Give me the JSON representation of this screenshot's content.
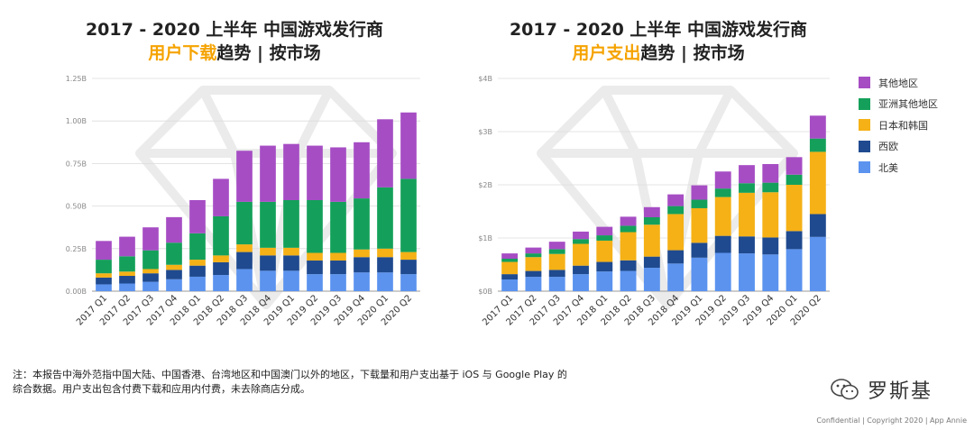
{
  "left_title": {
    "line1": "2017 - 2020 上半年 中国游戏发行商",
    "accent": "用户下载",
    "rest": "趋势 | 按市场"
  },
  "right_title": {
    "line1": "2017 - 2020 上半年 中国游戏发行商",
    "accent": "用户支出",
    "rest": "趋势 | 按市场"
  },
  "legend": [
    {
      "label": "其他地区",
      "color": "#a64dc4"
    },
    {
      "label": "亚洲其他地区",
      "color": "#14a05a"
    },
    {
      "label": "日本和韩国",
      "color": "#f5b116"
    },
    {
      "label": "西欧",
      "color": "#1f4a8f"
    },
    {
      "label": "北美",
      "color": "#5b93ef"
    }
  ],
  "footnote": {
    "line1": "注：本报告中海外范指中国大陆、中国香港、台湾地区和中国澳门以外的地区，下载量和用户支出基于 iOS 与 Google Play 的",
    "line2": "综合数据。用户支出包含付费下载和应用内付费，未去除商店分成。"
  },
  "brand": "罗斯基",
  "confidential": "Confidential  |  Copyright 2020  |  App Annie",
  "chart_data": [
    {
      "type": "bar",
      "stacked": true,
      "title": "2017 - 2020 上半年 中国游戏发行商 用户下载趋势 | 按市场",
      "categories": [
        "2017 Q1",
        "2017 Q2",
        "2017 Q3",
        "2017 Q4",
        "2018 Q1",
        "2018 Q2",
        "2018 Q3",
        "2018 Q4",
        "2019 Q1",
        "2019 Q2",
        "2019 Q3",
        "2019 Q4",
        "2020 Q1",
        "2020 Q2"
      ],
      "yticks": [
        "0.00B",
        "0.25B",
        "0.50B",
        "0.75B",
        "1.00B",
        "1.25B"
      ],
      "ylim": [
        0,
        1.25
      ],
      "grid": true,
      "series": [
        {
          "name": "北美",
          "values": [
            0.04,
            0.045,
            0.055,
            0.07,
            0.085,
            0.095,
            0.13,
            0.12,
            0.12,
            0.1,
            0.1,
            0.11,
            0.11,
            0.1
          ]
        },
        {
          "name": "西欧",
          "values": [
            0.04,
            0.045,
            0.05,
            0.055,
            0.065,
            0.075,
            0.1,
            0.09,
            0.09,
            0.08,
            0.08,
            0.09,
            0.09,
            0.085
          ]
        },
        {
          "name": "日本和韩国",
          "values": [
            0.025,
            0.025,
            0.025,
            0.03,
            0.035,
            0.04,
            0.045,
            0.045,
            0.045,
            0.045,
            0.045,
            0.045,
            0.05,
            0.045
          ]
        },
        {
          "name": "亚洲其他地区",
          "values": [
            0.08,
            0.09,
            0.11,
            0.13,
            0.155,
            0.23,
            0.25,
            0.27,
            0.28,
            0.31,
            0.3,
            0.3,
            0.36,
            0.43
          ]
        },
        {
          "name": "其他地区",
          "values": [
            0.11,
            0.115,
            0.135,
            0.15,
            0.195,
            0.22,
            0.3,
            0.33,
            0.33,
            0.32,
            0.32,
            0.33,
            0.4,
            0.39
          ]
        }
      ]
    },
    {
      "type": "bar",
      "stacked": true,
      "title": "2017 - 2020 上半年 中国游戏发行商 用户支出趋势 | 按市场",
      "categories": [
        "2017 Q1",
        "2017 Q2",
        "2017 Q3",
        "2017 Q4",
        "2018 Q1",
        "2018 Q2",
        "2018 Q3",
        "2018 Q4",
        "2019 Q1",
        "2019 Q2",
        "2019 Q3",
        "2019 Q4",
        "2020 Q1",
        "2020 Q2"
      ],
      "yticks": [
        "$0B",
        "$1B",
        "$2B",
        "$3B",
        "$4B"
      ],
      "ylim": [
        0,
        4
      ],
      "grid": true,
      "series": [
        {
          "name": "北美",
          "values": [
            0.22,
            0.27,
            0.27,
            0.32,
            0.37,
            0.38,
            0.44,
            0.52,
            0.63,
            0.72,
            0.71,
            0.69,
            0.79,
            1.02
          ]
        },
        {
          "name": "西欧",
          "values": [
            0.1,
            0.11,
            0.13,
            0.16,
            0.18,
            0.2,
            0.21,
            0.25,
            0.28,
            0.32,
            0.32,
            0.32,
            0.34,
            0.43
          ]
        },
        {
          "name": "日本和韩国",
          "values": [
            0.23,
            0.26,
            0.3,
            0.41,
            0.4,
            0.53,
            0.6,
            0.68,
            0.65,
            0.73,
            0.82,
            0.85,
            0.87,
            1.17
          ]
        },
        {
          "name": "亚洲其他地区",
          "values": [
            0.06,
            0.07,
            0.09,
            0.09,
            0.1,
            0.12,
            0.14,
            0.15,
            0.16,
            0.16,
            0.18,
            0.18,
            0.19,
            0.25
          ]
        },
        {
          "name": "其他地区",
          "values": [
            0.1,
            0.11,
            0.14,
            0.14,
            0.16,
            0.17,
            0.19,
            0.22,
            0.27,
            0.32,
            0.34,
            0.35,
            0.33,
            0.43
          ]
        }
      ]
    }
  ]
}
